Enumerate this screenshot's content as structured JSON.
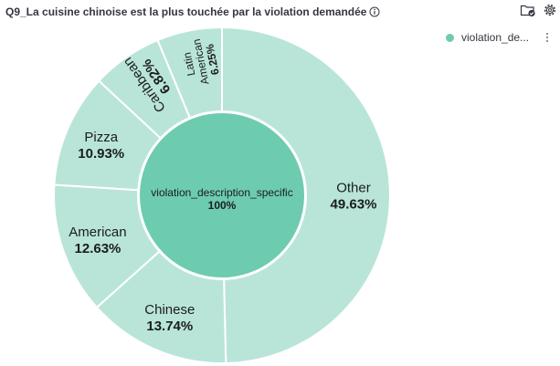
{
  "panel": {
    "title": "Q9_La cuisine chinoise est la plus touchée par la violation demandée"
  },
  "icons": {
    "info": "info-icon",
    "inspect": "folder-check-icon",
    "settings": "gear-icon",
    "legend_menu": "vertical-ellipsis-icon"
  },
  "colors": {
    "inner": "#6dcbb0",
    "outer": "#b9e5d8",
    "border": "#ffffff",
    "legend_dot": "#6dcbb0"
  },
  "legend": {
    "position": "top-right",
    "items": [
      {
        "label": "violation_de...",
        "color": "#6dcbb0"
      }
    ]
  },
  "chart_data": {
    "type": "pie",
    "inner": {
      "name": "violation_description_specific",
      "value_label": "100%",
      "value": 100
    },
    "slices": [
      {
        "name": "Other",
        "value": 49.63,
        "label": "49.63%"
      },
      {
        "name": "Chinese",
        "value": 13.74,
        "label": "13.74%"
      },
      {
        "name": "American",
        "value": 12.63,
        "label": "12.63%"
      },
      {
        "name": "Pizza",
        "value": 10.93,
        "label": "10.93%"
      },
      {
        "name": "Caribbean",
        "value": 6.82,
        "label": "6.82%"
      },
      {
        "name": "Latin American",
        "value": 6.25,
        "label": "6.25%"
      }
    ]
  }
}
